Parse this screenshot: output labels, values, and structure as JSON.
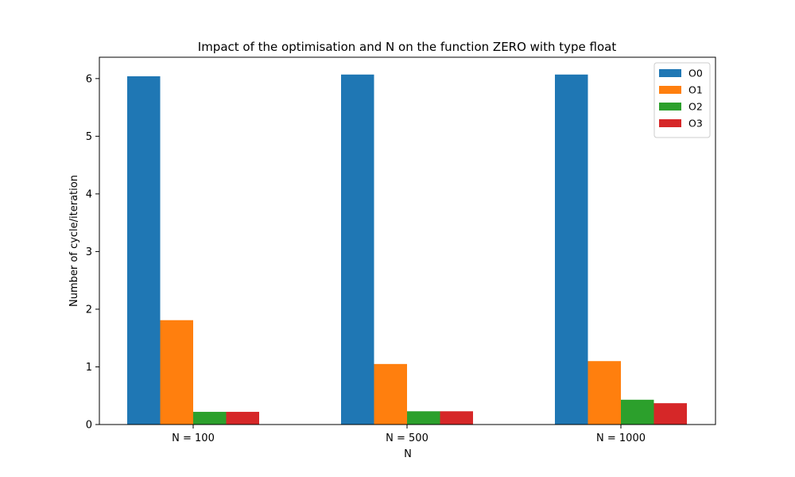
{
  "chart_data": {
    "type": "bar",
    "title": "Impact of the optimisation and N on the function ZERO with type float",
    "xlabel": "N",
    "ylabel": "Number of cycle/iteration",
    "categories": [
      "N = 100",
      "N = 500",
      "N = 1000"
    ],
    "series": [
      {
        "name": "O0",
        "color": "#1f77b4",
        "values": [
          6.04,
          6.07,
          6.07
        ]
      },
      {
        "name": "O1",
        "color": "#ff7f0e",
        "values": [
          1.81,
          1.05,
          1.1
        ]
      },
      {
        "name": "O2",
        "color": "#2ca02c",
        "values": [
          0.22,
          0.23,
          0.43
        ]
      },
      {
        "name": "O3",
        "color": "#d62728",
        "values": [
          0.22,
          0.23,
          0.37
        ]
      }
    ],
    "ylim": [
      0,
      6.37
    ],
    "yticks": [
      0,
      1,
      2,
      3,
      4,
      5,
      6
    ],
    "legend": "top-right",
    "grid": false
  }
}
